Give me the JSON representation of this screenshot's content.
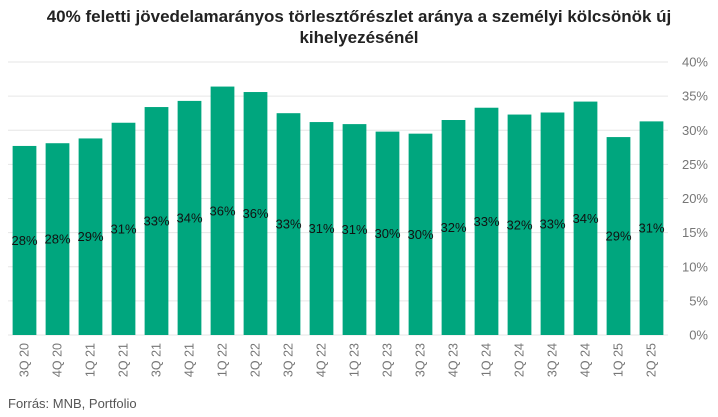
{
  "chart_data": {
    "type": "bar",
    "title_lines": [
      "40% feletti jövedelamarányos törlesztőrészlet aránya a személyi kölcsönök új",
      "kihelyezésénél"
    ],
    "categories": [
      "3Q 20",
      "4Q 20",
      "1Q 21",
      "2Q 21",
      "3Q 21",
      "4Q 21",
      "1Q 22",
      "2Q 22",
      "3Q 22",
      "4Q 22",
      "1Q 23",
      "2Q 23",
      "3Q 23",
      "4Q 23",
      "1Q 24",
      "2Q 24",
      "3Q 24",
      "4Q 24",
      "1Q 25",
      "2Q 25"
    ],
    "values": [
      27.7,
      28.1,
      28.8,
      31.1,
      33.4,
      34.3,
      36.4,
      35.6,
      32.5,
      31.2,
      30.9,
      29.8,
      29.5,
      31.5,
      33.3,
      32.3,
      32.6,
      34.2,
      29.0,
      31.3
    ],
    "value_labels": [
      "28%",
      "28%",
      "29%",
      "31%",
      "33%",
      "34%",
      "36%",
      "36%",
      "33%",
      "31%",
      "31%",
      "30%",
      "30%",
      "32%",
      "33%",
      "32%",
      "33%",
      "34%",
      "29%",
      "31%"
    ],
    "ylim": [
      0,
      40
    ],
    "yticks": [
      0,
      5,
      10,
      15,
      20,
      25,
      30,
      35,
      40
    ],
    "ytick_labels": [
      "0%",
      "5%",
      "10%",
      "15%",
      "20%",
      "25%",
      "30%",
      "35%",
      "40%"
    ],
    "y_axis_side": "right",
    "grid": true,
    "bar_color": "#00a67e",
    "grid_color": "#e6e6e6",
    "xlabel": "",
    "ylabel": ""
  },
  "source": "Forrás: MNB, Portfolio"
}
